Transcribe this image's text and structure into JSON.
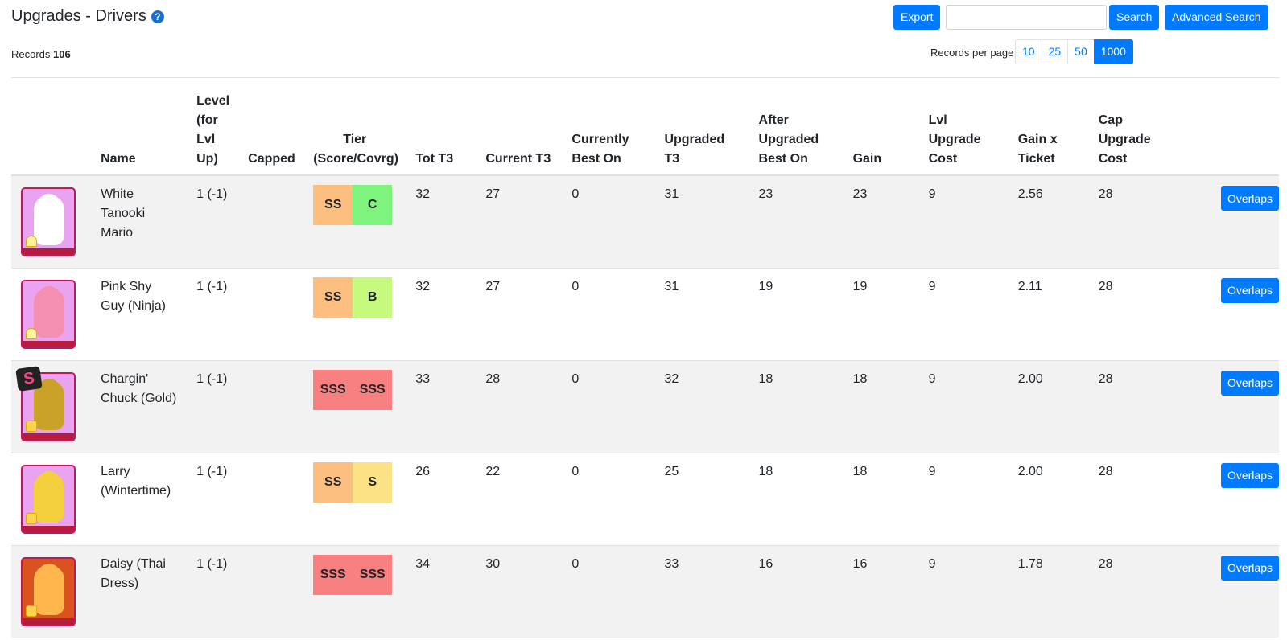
{
  "header": {
    "title": "Upgrades - Drivers",
    "help_glyph": "?",
    "export_label": "Export",
    "search_value": "",
    "search_label": "Search",
    "advanced_search_label": "Advanced Search"
  },
  "records": {
    "label": "Records",
    "count": "106"
  },
  "pagination": {
    "label": "Records per page",
    "options": [
      "10",
      "25",
      "50",
      "1000"
    ],
    "selected": "1000"
  },
  "table": {
    "columns": [
      "",
      "Name",
      "Level (for Lvl Up)",
      "Capped",
      "Tier (Score/Covrg)",
      "Tot T3",
      "Current T3",
      "Currently Best On",
      "Upgraded T3",
      "After Upgraded Best On",
      "Gain",
      "Lvl Upgrade Cost",
      "Gain x Ticket",
      "Cap Upgrade Cost",
      ""
    ],
    "rows": [
      {
        "name": "White Tanooki Mario",
        "level": "1 (-1)",
        "capped": "",
        "tier_score": "SS",
        "tier_score_color": "#fdbf80",
        "tier_covrg": "C",
        "tier_covrg_color": "#7ef47e",
        "tot_t3": "32",
        "current_t3": "27",
        "currently_best_on": "0",
        "upgraded_t3": "31",
        "after_upgraded_best_on": "23",
        "gain": "23",
        "lvl_upgrade_cost": "9",
        "gain_x_ticket": "2.56",
        "cap_upgrade_cost": "28",
        "action_label": "Overlaps",
        "icon": "driver-card-icon",
        "card_bg": "#e9a3f0",
        "figure_color": "#ffffff",
        "type_icon": "glider-icon"
      },
      {
        "name": "Pink Shy Guy (Ninja)",
        "level": "1 (-1)",
        "capped": "",
        "tier_score": "SS",
        "tier_score_color": "#fdbf80",
        "tier_covrg": "B",
        "tier_covrg_color": "#c6fa7e",
        "tot_t3": "32",
        "current_t3": "27",
        "currently_best_on": "0",
        "upgraded_t3": "31",
        "after_upgraded_best_on": "19",
        "gain": "19",
        "lvl_upgrade_cost": "9",
        "gain_x_ticket": "2.11",
        "cap_upgrade_cost": "28",
        "action_label": "Overlaps",
        "icon": "driver-card-icon",
        "card_bg": "#e9a3f0",
        "figure_color": "#f48fb1",
        "type_icon": "glider-icon"
      },
      {
        "name": "Chargin' Chuck (Gold)",
        "level": "1 (-1)",
        "capped": "",
        "tier_score": "SSS",
        "tier_score_color": "#f98080",
        "tier_covrg": "SSS",
        "tier_covrg_color": "#f98080",
        "tot_t3": "33",
        "current_t3": "28",
        "currently_best_on": "0",
        "upgraded_t3": "32",
        "after_upgraded_best_on": "18",
        "gain": "18",
        "lvl_upgrade_cost": "9",
        "gain_x_ticket": "2.00",
        "cap_upgrade_cost": "28",
        "action_label": "Overlaps",
        "icon": "driver-card-icon",
        "card_bg": "#e9a3f0",
        "figure_color": "#c9a227",
        "type_icon": "item-box-icon",
        "badge": "S"
      },
      {
        "name": "Larry (Wintertime)",
        "level": "1 (-1)",
        "capped": "",
        "tier_score": "SS",
        "tier_score_color": "#fdbf80",
        "tier_covrg": "S",
        "tier_covrg_color": "#fde285",
        "tot_t3": "26",
        "current_t3": "22",
        "currently_best_on": "0",
        "upgraded_t3": "25",
        "after_upgraded_best_on": "18",
        "gain": "18",
        "lvl_upgrade_cost": "9",
        "gain_x_ticket": "2.00",
        "cap_upgrade_cost": "28",
        "action_label": "Overlaps",
        "icon": "driver-card-icon",
        "card_bg": "#e9a3f0",
        "figure_color": "#f4d03f",
        "type_icon": "item-box-icon"
      },
      {
        "name": "Daisy (Thai Dress)",
        "level": "1 (-1)",
        "capped": "",
        "tier_score": "SSS",
        "tier_score_color": "#f98080",
        "tier_covrg": "SSS",
        "tier_covrg_color": "#f98080",
        "tot_t3": "34",
        "current_t3": "30",
        "currently_best_on": "0",
        "upgraded_t3": "33",
        "after_upgraded_best_on": "16",
        "gain": "16",
        "lvl_upgrade_cost": "9",
        "gain_x_ticket": "1.78",
        "cap_upgrade_cost": "28",
        "action_label": "Overlaps",
        "icon": "driver-card-icon",
        "card_bg": "#d9531e",
        "figure_color": "#ffb74d",
        "type_icon": "item-box-icon"
      }
    ]
  }
}
